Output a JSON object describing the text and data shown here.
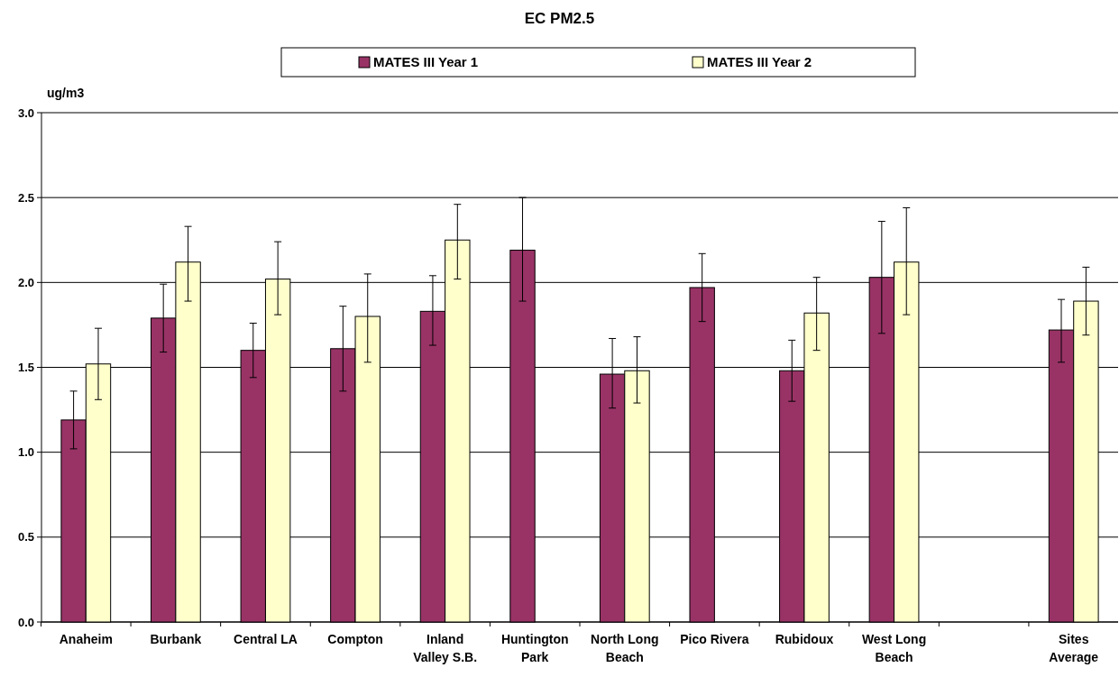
{
  "chart_data": {
    "type": "bar",
    "title": "EC PM2.5",
    "ylabel": "ug/m3",
    "categories": [
      "Anaheim",
      "Burbank",
      "Central LA",
      "Compton",
      "Inland\nValley S.B.",
      "Huntington\nPark",
      "North Long\nBeach",
      "Pico Rivera",
      "Rubidoux",
      "West Long\nBeach",
      null,
      "Sites\nAverage"
    ],
    "series": [
      {
        "name": "MATES III Year 1",
        "color": "#993366",
        "values": [
          1.19,
          1.79,
          1.6,
          1.61,
          1.83,
          2.19,
          1.46,
          1.97,
          1.48,
          2.03,
          null,
          1.72
        ],
        "errors": [
          [
            1.02,
            1.36
          ],
          [
            1.59,
            1.99
          ],
          [
            1.44,
            1.76
          ],
          [
            1.36,
            1.86
          ],
          [
            1.63,
            2.04
          ],
          [
            1.89,
            2.5
          ],
          [
            1.26,
            1.67
          ],
          [
            1.77,
            2.17
          ],
          [
            1.3,
            1.66
          ],
          [
            1.7,
            2.36
          ],
          null,
          [
            1.53,
            1.9
          ]
        ]
      },
      {
        "name": "MATES III Year 2",
        "color": "#ffffcc",
        "values": [
          1.52,
          2.12,
          2.02,
          1.8,
          2.25,
          null,
          1.48,
          null,
          1.82,
          2.12,
          null,
          1.89
        ],
        "errors": [
          [
            1.31,
            1.73
          ],
          [
            1.89,
            2.33
          ],
          [
            1.81,
            2.24
          ],
          [
            1.53,
            2.05
          ],
          [
            2.02,
            2.46
          ],
          null,
          [
            1.29,
            1.68
          ],
          null,
          [
            1.6,
            2.03
          ],
          [
            1.81,
            2.44
          ],
          null,
          [
            1.69,
            2.09
          ]
        ]
      }
    ],
    "ylim": [
      0,
      3
    ],
    "yticks": [
      {
        "value": 0,
        "label": "0.0"
      },
      {
        "value": 0.5,
        "label": "0.5"
      },
      {
        "value": 1,
        "label": "1.0"
      },
      {
        "value": 1.5,
        "label": "1.5"
      },
      {
        "value": 2,
        "label": "2.0"
      },
      {
        "value": 2.5,
        "label": "2.5"
      },
      {
        "value": 3,
        "label": "3.0"
      }
    ],
    "grid": "y",
    "legend": "top"
  }
}
